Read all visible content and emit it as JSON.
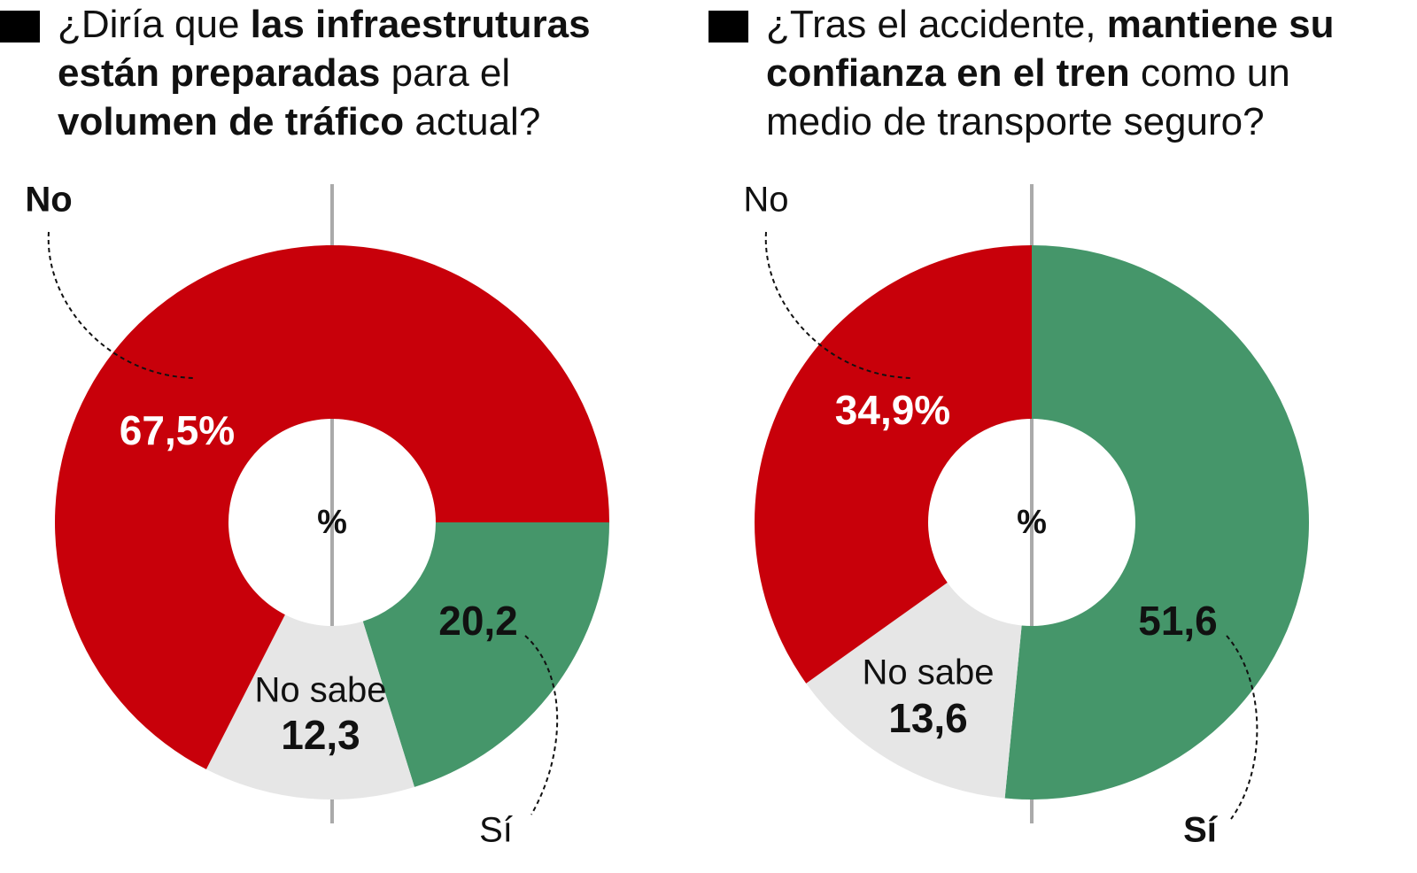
{
  "chart_data": [
    {
      "type": "donut",
      "title_lines": [
        [
          {
            "text": "¿Diría que ",
            "bold": false
          },
          {
            "text": "las infraestruturas",
            "bold": true
          }
        ],
        [
          {
            "text": "están preparadas",
            "bold": true
          },
          {
            "text": " para el",
            "bold": false
          }
        ],
        [
          {
            "text": "volumen de tráfico",
            "bold": true
          },
          {
            "text": " actual?",
            "bold": false
          }
        ]
      ],
      "center_label": "%",
      "categories": [
        "Sí",
        "No sabe",
        "No"
      ],
      "label_bold": [
        false,
        false,
        true
      ],
      "values": [
        20.2,
        12.3,
        67.5
      ],
      "value_labels": [
        "20,2",
        "12,3",
        "67,5%"
      ],
      "colors": [
        "#45966a",
        "#e6e6e6",
        "#c8000a"
      ],
      "start_angle": 90
    },
    {
      "type": "donut",
      "title_lines": [
        [
          {
            "text": "¿Tras el accidente, ",
            "bold": false
          },
          {
            "text": "mantiene su",
            "bold": true
          }
        ],
        [
          {
            "text": "confianza en el tren",
            "bold": true
          },
          {
            "text": " como un",
            "bold": false
          }
        ],
        [
          {
            "text": "medio de transporte seguro?",
            "bold": false
          }
        ]
      ],
      "center_label": "%",
      "categories": [
        "Sí",
        "No sabe",
        "No"
      ],
      "label_bold": [
        true,
        false,
        false
      ],
      "values": [
        51.6,
        13.6,
        34.9
      ],
      "value_labels": [
        "51,6",
        "13,6",
        "34,9%"
      ],
      "colors": [
        "#45966a",
        "#e6e6e6",
        "#c8000a"
      ],
      "start_angle": 0
    }
  ]
}
